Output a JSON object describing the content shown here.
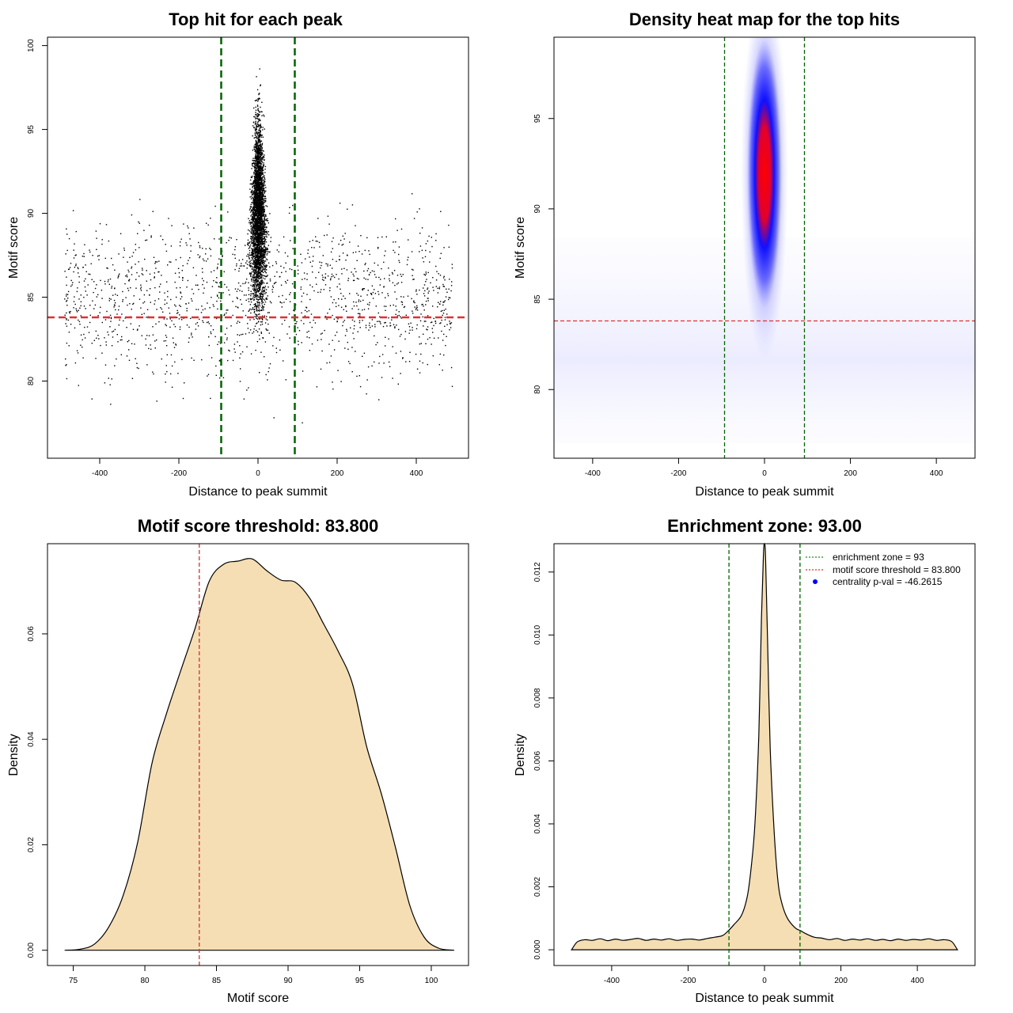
{
  "chart_data": [
    {
      "id": "scatter",
      "type": "scatter",
      "title": "Top hit for each peak",
      "xlabel": "Distance to peak summit",
      "ylabel": "Motif score",
      "xlim": [
        -532,
        532
      ],
      "ylim": [
        75.4,
        100.5
      ],
      "xticks": [
        -400,
        -200,
        0,
        200,
        400
      ],
      "yticks": [
        80,
        85,
        90,
        95,
        100
      ],
      "background_points": {
        "x_range": [
          -490,
          490
        ],
        "y_range": [
          77,
          97.5
        ],
        "count": 1500
      },
      "central_points": {
        "center_x": 0,
        "x_spread": 40,
        "y_range": [
          78,
          99.5
        ],
        "count": 3500
      },
      "vlines": [
        -93,
        93
      ],
      "hline": 83.8,
      "colors": {
        "points": "#000000",
        "vline": "#006400",
        "hline": "#e03030"
      }
    },
    {
      "id": "heatmap",
      "type": "heatmap",
      "title": "Density heat map for the top hits",
      "xlabel": "Distance to peak summit",
      "ylabel": "Motif score",
      "xlim": [
        -490,
        490
      ],
      "ylim": [
        76.2,
        99.5
      ],
      "xticks": [
        -400,
        -200,
        0,
        200,
        400
      ],
      "yticks": [
        80,
        85,
        90,
        95
      ],
      "hotspot": {
        "center_x": 0,
        "center_y": 91.5
      },
      "vlines": [
        -93,
        93
      ],
      "hline": 83.8,
      "colors": {
        "low": "#ffffff",
        "mid": "#0000ff",
        "high": "#ff0000",
        "vline": "#006400",
        "hline": "#e03030"
      }
    },
    {
      "id": "score_density",
      "type": "area",
      "title": "Motif score threshold: 83.800",
      "xlabel": "Motif score",
      "ylabel": "Density",
      "xlim": [
        73.2,
        102.6
      ],
      "ylim": [
        -0.0029,
        0.0771
      ],
      "xticks": [
        75,
        80,
        85,
        90,
        95,
        100
      ],
      "yticks": [
        0.0,
        0.02,
        0.04,
        0.06
      ],
      "ytick_labels": [
        "0.00",
        "0.02",
        "0.04",
        "0.06"
      ],
      "x": [
        74.4,
        75.5,
        76.5,
        77.5,
        78.5,
        79.5,
        80.5,
        81.5,
        82.5,
        83.5,
        84.5,
        85.5,
        86.5,
        87.5,
        88.5,
        89.5,
        90.5,
        91.5,
        92.5,
        93.5,
        94.5,
        95.5,
        96.5,
        97.5,
        98.5,
        99.5,
        100.5,
        101.6
      ],
      "y": [
        0.0,
        0.0002,
        0.0012,
        0.0045,
        0.0105,
        0.0205,
        0.0355,
        0.0448,
        0.053,
        0.061,
        0.07,
        0.0732,
        0.0738,
        0.0742,
        0.072,
        0.0702,
        0.0698,
        0.0668,
        0.0618,
        0.0567,
        0.0505,
        0.0385,
        0.0298,
        0.0195,
        0.0085,
        0.0025,
        0.0004,
        0.0
      ],
      "vline": 83.8,
      "colors": {
        "fill": "#f5deb3",
        "line": "#000000",
        "vline": "#cc3333"
      }
    },
    {
      "id": "distance_density",
      "type": "area",
      "title": "Enrichment zone: 93.00",
      "xlabel": "Distance to peak summit",
      "ylabel": "Density",
      "xlim": [
        -551,
        551
      ],
      "ylim": [
        -0.0005,
        0.0129
      ],
      "xticks": [
        -400,
        -200,
        0,
        200,
        400
      ],
      "yticks": [
        0.0,
        0.002,
        0.004,
        0.006,
        0.008,
        0.01,
        0.012
      ],
      "ytick_labels": [
        "0.000",
        "0.002",
        "0.004",
        "0.006",
        "0.008",
        "0.010",
        "0.012"
      ],
      "x": [
        -505,
        -490,
        -470,
        -450,
        -430,
        -410,
        -390,
        -370,
        -350,
        -330,
        -310,
        -290,
        -270,
        -250,
        -230,
        -210,
        -190,
        -170,
        -150,
        -130,
        -110,
        -95,
        -80,
        -60,
        -45,
        -35,
        -25,
        -15,
        -8,
        -3,
        0,
        3,
        8,
        15,
        25,
        35,
        45,
        60,
        80,
        95,
        110,
        130,
        150,
        170,
        190,
        210,
        230,
        250,
        270,
        290,
        310,
        330,
        350,
        370,
        390,
        410,
        430,
        450,
        470,
        490,
        505
      ],
      "y": [
        0.0,
        0.00025,
        0.00032,
        0.0003,
        0.00035,
        0.00029,
        0.00034,
        0.0003,
        0.00033,
        0.00036,
        0.0003,
        0.00034,
        0.00031,
        0.00035,
        0.0003,
        0.00033,
        0.00034,
        0.00031,
        0.00036,
        0.0004,
        0.00045,
        0.0006,
        0.0008,
        0.0011,
        0.0017,
        0.0026,
        0.004,
        0.0068,
        0.0105,
        0.0125,
        0.0129,
        0.0124,
        0.0098,
        0.0064,
        0.0038,
        0.0022,
        0.0015,
        0.001,
        0.0007,
        0.0006,
        0.0005,
        0.0004,
        0.00037,
        0.00032,
        0.00036,
        0.0003,
        0.00034,
        0.00031,
        0.00035,
        0.0003,
        0.00033,
        0.00029,
        0.00034,
        0.0003,
        0.00033,
        0.00031,
        0.00035,
        0.0003,
        0.00032,
        0.00026,
        0.0
      ],
      "vlines": [
        -93,
        93
      ],
      "legend": [
        "enrichment zone = 93",
        "motif score threshold = 83.800",
        "centrality p-val = -46.2615"
      ],
      "legend_position": "top-right",
      "colors": {
        "fill": "#f5deb3",
        "line": "#000000",
        "vline": "#006400",
        "legend_zone": "#228b22",
        "legend_threshold": "#e03030",
        "legend_pval": "#0000ff"
      }
    }
  ]
}
